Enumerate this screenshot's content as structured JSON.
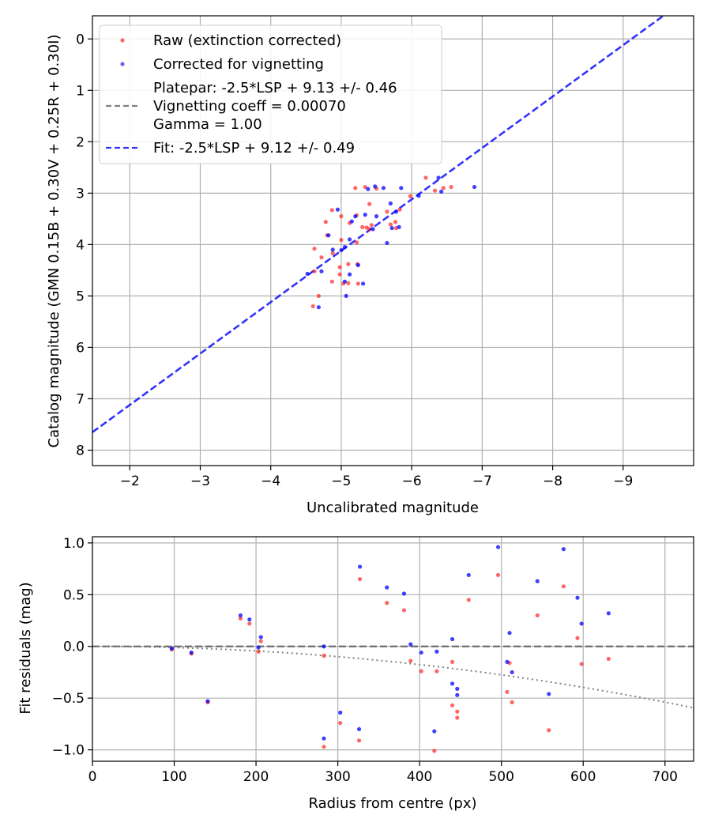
{
  "chart_data": [
    {
      "type": "scatter",
      "xlabel": "Uncalibrated magnitude",
      "ylabel": "Catalog magnitude (GMN 0.15B + 0.30V + 0.25R + 0.30I)",
      "xlim": [
        -1.47,
        -10.0
      ],
      "ylim": [
        8.3,
        -0.45
      ],
      "x_inverted": true,
      "y_inverted": true,
      "grid": true,
      "xticks": [
        -2,
        -3,
        -4,
        -5,
        -6,
        -7,
        -8,
        -9
      ],
      "xtick_labels": [
        "−2",
        "−3",
        "−4",
        "−5",
        "−6",
        "−7",
        "−8",
        "−9"
      ],
      "yticks": [
        0,
        1,
        2,
        3,
        4,
        5,
        6,
        7,
        8
      ],
      "ytick_labels": [
        "0",
        "1",
        "2",
        "3",
        "4",
        "5",
        "6",
        "7",
        "8"
      ],
      "legend_position": "top-left",
      "legend": [
        {
          "label": "Raw (extinction corrected)",
          "kind": "marker",
          "color": "#ff0000"
        },
        {
          "label": "Corrected for vignetting",
          "kind": "marker",
          "color": "#0000ff"
        },
        {
          "label": "Platepar: -2.5*LSP + 9.13 +/- 0.46",
          "kind": "dashed-line",
          "color": "#808080"
        },
        {
          "label": "Vignetting coeff = 0.00070",
          "kind": "none"
        },
        {
          "label": "Gamma = 1.00",
          "kind": "none"
        },
        {
          "label": "Fit: -2.5*LSP + 9.12 +/- 0.49",
          "kind": "dashed-line",
          "color": "#0000ff"
        }
      ],
      "series": [
        {
          "name": "Raw (extinction corrected)",
          "color": "#ff0000",
          "points": [
            [
              -4.6,
              5.2
            ],
            [
              -4.68,
              5.0
            ],
            [
              -4.62,
              4.52
            ],
            [
              -4.87,
              4.72
            ],
            [
              -4.98,
              4.58
            ],
            [
              -4.98,
              4.44
            ],
            [
              -5.03,
              4.76
            ],
            [
              -5.1,
              4.38
            ],
            [
              -5.1,
              4.75
            ],
            [
              -5.24,
              4.76
            ],
            [
              -5.23,
              4.38
            ],
            [
              -4.62,
              4.08
            ],
            [
              -4.72,
              4.25
            ],
            [
              -4.8,
              3.82
            ],
            [
              -4.78,
              3.56
            ],
            [
              -4.88,
              4.17
            ],
            [
              -5.0,
              3.91
            ],
            [
              -5.0,
              3.45
            ],
            [
              -4.87,
              3.33
            ],
            [
              -5.12,
              3.58
            ],
            [
              -5.2,
              2.9
            ],
            [
              -5.22,
              3.96
            ],
            [
              -5.3,
              3.66
            ],
            [
              -5.36,
              3.67
            ],
            [
              -5.34,
              2.88
            ],
            [
              -5.43,
              3.62
            ],
            [
              -5.4,
              3.21
            ],
            [
              -5.5,
              2.91
            ],
            [
              -5.65,
              3.36
            ],
            [
              -5.7,
              3.61
            ],
            [
              -5.77,
              3.56
            ],
            [
              -5.78,
              3.68
            ],
            [
              -5.83,
              3.32
            ],
            [
              -5.98,
              3.06
            ],
            [
              -6.2,
              2.7
            ],
            [
              -6.33,
              2.95
            ],
            [
              -6.45,
              2.9
            ],
            [
              -6.56,
              2.88
            ],
            [
              -5.4,
              3.7
            ],
            [
              -5.22,
              3.43
            ]
          ]
        },
        {
          "name": "Corrected for vignetting",
          "color": "#0000ff",
          "points": [
            [
              -4.52,
              4.57
            ],
            [
              -4.68,
              5.22
            ],
            [
              -4.72,
              4.52
            ],
            [
              -4.82,
              3.82
            ],
            [
              -4.88,
              4.1
            ],
            [
              -4.95,
              3.32
            ],
            [
              -5.0,
              4.11
            ],
            [
              -5.05,
              4.72
            ],
            [
              -5.07,
              5.0
            ],
            [
              -5.12,
              3.9
            ],
            [
              -5.12,
              4.58
            ],
            [
              -5.15,
              3.55
            ],
            [
              -5.2,
              3.45
            ],
            [
              -5.24,
              4.4
            ],
            [
              -5.31,
              4.76
            ],
            [
              -5.34,
              3.42
            ],
            [
              -5.38,
              2.92
            ],
            [
              -5.45,
              3.7
            ],
            [
              -5.48,
              2.87
            ],
            [
              -5.6,
              2.9
            ],
            [
              -5.65,
              3.97
            ],
            [
              -5.72,
              3.68
            ],
            [
              -5.7,
              3.2
            ],
            [
              -5.78,
              3.36
            ],
            [
              -5.82,
              3.66
            ],
            [
              -5.85,
              2.9
            ],
            [
              -6.1,
              3.05
            ],
            [
              -6.38,
              2.7
            ],
            [
              -6.42,
              2.97
            ],
            [
              -6.89,
              2.88
            ],
            [
              -5.5,
              3.45
            ],
            [
              -5.05,
              4.05
            ]
          ]
        }
      ],
      "fit_line": {
        "label": "Fit: -2.5*LSP + 9.12 +/- 0.49",
        "slope": 1.0,
        "intercept": 9.12,
        "color": "#0000ff",
        "style": "dashed"
      }
    },
    {
      "type": "scatter",
      "xlabel": "Radius from centre (px)",
      "ylabel": "Fit residuals (mag)",
      "xlim": [
        0,
        735
      ],
      "ylim": [
        -1.11,
        1.06
      ],
      "grid": true,
      "xticks": [
        0,
        100,
        200,
        300,
        400,
        500,
        600,
        700
      ],
      "xtick_labels": [
        "0",
        "100",
        "200",
        "300",
        "400",
        "500",
        "600",
        "700"
      ],
      "yticks": [
        1.0,
        0.5,
        0.0,
        -0.5,
        -1.0
      ],
      "ytick_labels": [
        "1.0",
        "0.5",
        "0.0",
        "−0.5",
        "−1.0"
      ],
      "series": [
        {
          "name": "Raw (extinction corrected)",
          "color": "#ff0000",
          "points": [
            [
              97,
              -0.03
            ],
            [
              121,
              -0.07
            ],
            [
              141,
              -0.54
            ],
            [
              181,
              0.27
            ],
            [
              192,
              0.22
            ],
            [
              203,
              -0.05
            ],
            [
              206,
              0.05
            ],
            [
              283,
              -0.09
            ],
            [
              283,
              -0.97
            ],
            [
              303,
              -0.74
            ],
            [
              326,
              -0.91
            ],
            [
              327,
              0.65
            ],
            [
              360,
              0.42
            ],
            [
              381,
              0.35
            ],
            [
              389,
              -0.14
            ],
            [
              402,
              -0.24
            ],
            [
              418,
              -1.01
            ],
            [
              421,
              -0.24
            ],
            [
              440,
              -0.57
            ],
            [
              440,
              -0.15
            ],
            [
              446,
              -0.69
            ],
            [
              446,
              -0.63
            ],
            [
              460,
              0.45
            ],
            [
              496,
              0.69
            ],
            [
              507,
              -0.44
            ],
            [
              510,
              -0.16
            ],
            [
              513,
              -0.54
            ],
            [
              544,
              0.3
            ],
            [
              558,
              -0.81
            ],
            [
              576,
              0.58
            ],
            [
              593,
              0.08
            ],
            [
              598,
              -0.17
            ],
            [
              631,
              -0.12
            ]
          ]
        },
        {
          "name": "Corrected for vignetting",
          "color": "#0000ff",
          "points": [
            [
              97,
              -0.02
            ],
            [
              121,
              -0.06
            ],
            [
              141,
              -0.53
            ],
            [
              181,
              0.3
            ],
            [
              192,
              0.26
            ],
            [
              203,
              -0.01
            ],
            [
              206,
              0.09
            ],
            [
              283,
              0.0
            ],
            [
              283,
              -0.89
            ],
            [
              303,
              -0.64
            ],
            [
              326,
              -0.8
            ],
            [
              327,
              0.77
            ],
            [
              360,
              0.57
            ],
            [
              381,
              0.51
            ],
            [
              389,
              0.02
            ],
            [
              402,
              -0.06
            ],
            [
              418,
              -0.82
            ],
            [
              421,
              -0.05
            ],
            [
              440,
              -0.36
            ],
            [
              440,
              0.07
            ],
            [
              446,
              -0.47
            ],
            [
              446,
              -0.41
            ],
            [
              460,
              0.69
            ],
            [
              496,
              0.96
            ],
            [
              507,
              -0.15
            ],
            [
              510,
              0.13
            ],
            [
              513,
              -0.25
            ],
            [
              544,
              0.63
            ],
            [
              558,
              -0.46
            ],
            [
              576,
              0.94
            ],
            [
              593,
              0.47
            ],
            [
              598,
              0.22
            ],
            [
              631,
              0.32
            ]
          ]
        }
      ],
      "reference_lines": [
        {
          "name": "zero-line",
          "style": "dashed",
          "color": "#555555",
          "equation": "y = 0"
        },
        {
          "name": "vignetting-curve",
          "style": "dotted",
          "color": "#808080",
          "equation": "y = -0.0000011 * r^2"
        }
      ]
    }
  ]
}
